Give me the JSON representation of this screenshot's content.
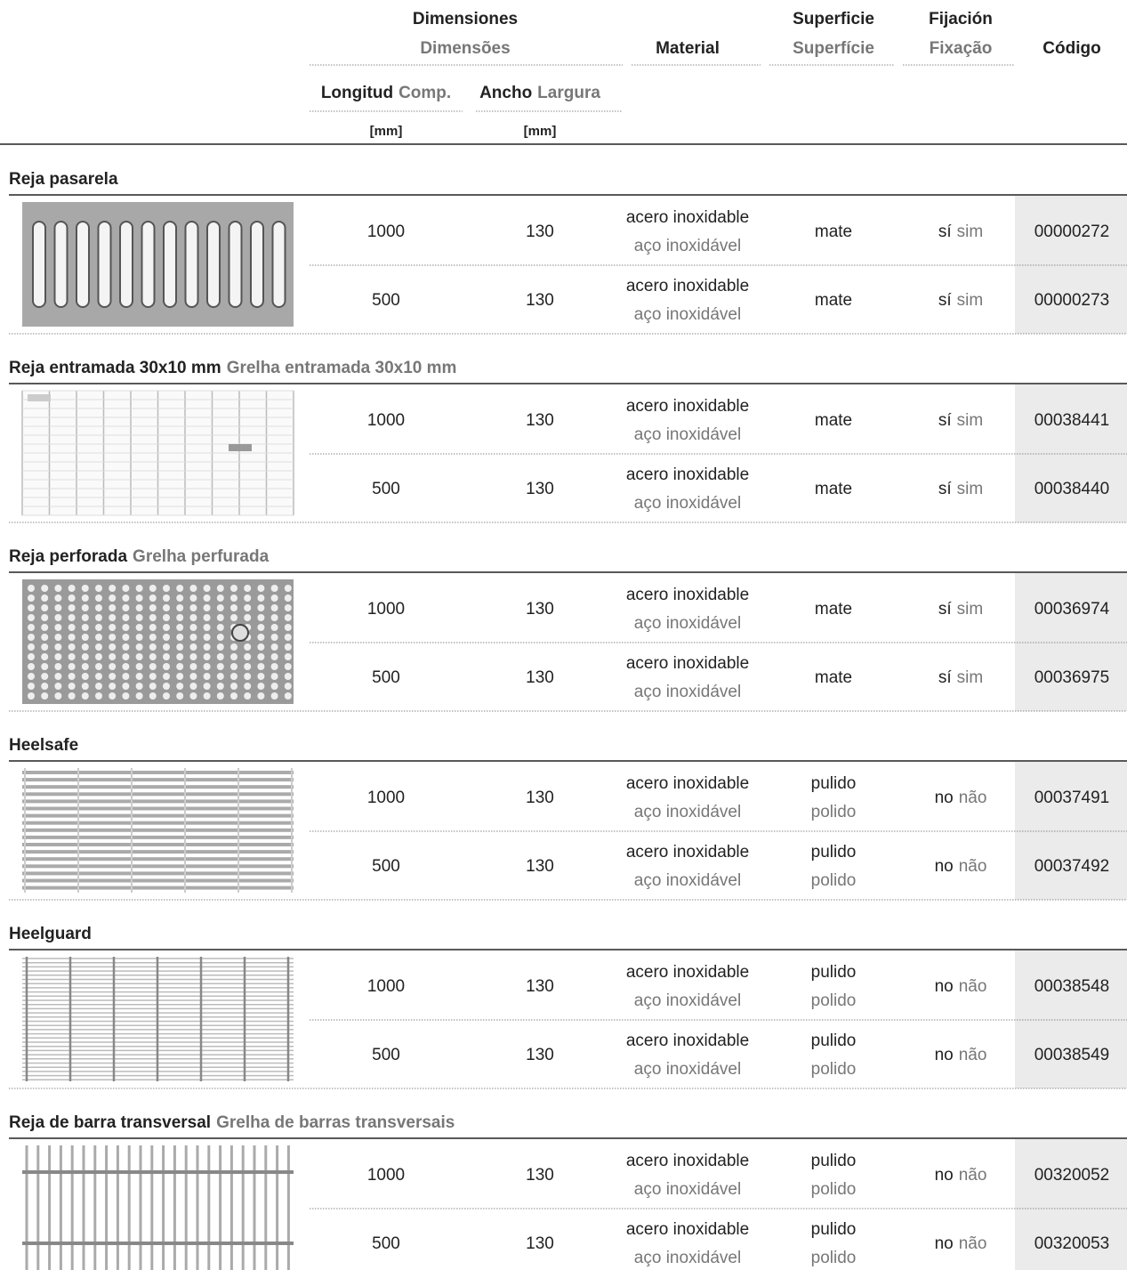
{
  "header": {
    "dimensions": {
      "es": "Dimensiones",
      "pt": "Dimensões"
    },
    "material": "Material",
    "surface": {
      "es": "Superficie",
      "pt": "Superfície"
    },
    "fixing": {
      "es": "Fijación",
      "pt": "Fixação"
    },
    "code": "Código",
    "length": {
      "es": "Longitud",
      "pt": "Comp.",
      "unit": "[mm]"
    },
    "width": {
      "es": "Ancho",
      "pt": "Largura",
      "unit": "[mm]"
    }
  },
  "sections": [
    {
      "title_es": "Reja pasarela",
      "rows": [
        {
          "length": 1000,
          "width": 130,
          "material_es": "acero inoxidable",
          "material_pt": "aço inoxidável",
          "surface_es": "mate",
          "fixing_es": "sí",
          "fixing_pt": "sim",
          "code": "00000272"
        },
        {
          "length": 500,
          "width": 130,
          "material_es": "acero inoxidable",
          "material_pt": "aço inoxidável",
          "surface_es": "mate",
          "fixing_es": "sí",
          "fixing_pt": "sim",
          "code": "00000273"
        }
      ]
    },
    {
      "title_es": "Reja entramada 30x10 mm",
      "title_pt": "Grelha entramada 30x10 mm",
      "rows": [
        {
          "length": 1000,
          "width": 130,
          "material_es": "acero inoxidable",
          "material_pt": "aço inoxidável",
          "surface_es": "mate",
          "fixing_es": "sí",
          "fixing_pt": "sim",
          "code": "00038441"
        },
        {
          "length": 500,
          "width": 130,
          "material_es": "acero inoxidable",
          "material_pt": "aço inoxidável",
          "surface_es": "mate",
          "fixing_es": "sí",
          "fixing_pt": "sim",
          "code": "00038440"
        }
      ]
    },
    {
      "title_es": "Reja perforada",
      "title_pt": "Grelha perfurada",
      "rows": [
        {
          "length": 1000,
          "width": 130,
          "material_es": "acero inoxidable",
          "material_pt": "aço inoxidável",
          "surface_es": "mate",
          "fixing_es": "sí",
          "fixing_pt": "sim",
          "code": "00036974"
        },
        {
          "length": 500,
          "width": 130,
          "material_es": "acero inoxidable",
          "material_pt": "aço inoxidável",
          "surface_es": "mate",
          "fixing_es": "sí",
          "fixing_pt": "sim",
          "code": "00036975"
        }
      ]
    },
    {
      "title_es": "Heelsafe",
      "rows": [
        {
          "length": 1000,
          "width": 130,
          "material_es": "acero inoxidable",
          "material_pt": "aço inoxidável",
          "surface_es": "pulido",
          "surface_pt": "polido",
          "fixing_es": "no",
          "fixing_pt": "não",
          "code": "00037491"
        },
        {
          "length": 500,
          "width": 130,
          "material_es": "acero inoxidable",
          "material_pt": "aço inoxidável",
          "surface_es": "pulido",
          "surface_pt": "polido",
          "fixing_es": "no",
          "fixing_pt": "não",
          "code": "00037492"
        }
      ]
    },
    {
      "title_es": "Heelguard",
      "rows": [
        {
          "length": 1000,
          "width": 130,
          "material_es": "acero inoxidable",
          "material_pt": "aço inoxidável",
          "surface_es": "pulido",
          "surface_pt": "polido",
          "fixing_es": "no",
          "fixing_pt": "não",
          "code": "00038548"
        },
        {
          "length": 500,
          "width": 130,
          "material_es": "acero inoxidable",
          "material_pt": "aço inoxidável",
          "surface_es": "pulido",
          "surface_pt": "polido",
          "fixing_es": "no",
          "fixing_pt": "não",
          "code": "00038549"
        }
      ]
    },
    {
      "title_es": "Reja de barra transversal",
      "title_pt": "Grelha de barras transversais",
      "rows": [
        {
          "length": 1000,
          "width": 130,
          "material_es": "acero inoxidable",
          "material_pt": "aço inoxidável",
          "surface_es": "pulido",
          "surface_pt": "polido",
          "fixing_es": "no",
          "fixing_pt": "não",
          "code": "00320052"
        },
        {
          "length": 500,
          "width": 130,
          "material_es": "acero inoxidable",
          "material_pt": "aço inoxidável",
          "surface_es": "pulido",
          "surface_pt": "polido",
          "fixing_es": "no",
          "fixing_pt": "não",
          "code": "00320053"
        }
      ]
    }
  ]
}
